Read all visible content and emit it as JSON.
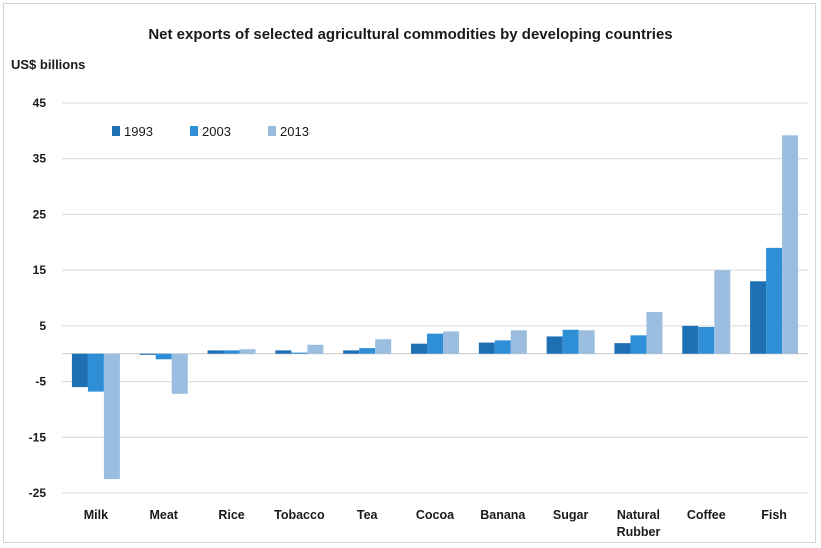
{
  "chart_data": {
    "type": "bar",
    "title": "Net exports of selected agricultural commodities by developing countries",
    "ylabel": "US$ billions",
    "xlabel": "",
    "ylim": [
      -25,
      45
    ],
    "yticks": [
      45,
      35,
      25,
      15,
      5,
      -5,
      -15,
      -25
    ],
    "grid": true,
    "legend_position": "top-left",
    "categories": [
      "Milk",
      "Meat",
      "Rice",
      "Tobacco",
      "Tea",
      "Cocoa",
      "Banana",
      "Sugar",
      "Natural Rubber",
      "Coffee",
      "Fish"
    ],
    "series": [
      {
        "name": "1993",
        "color": "#1f6fb5",
        "values": [
          -6,
          -0.2,
          0.6,
          0.6,
          0.6,
          1.8,
          2.0,
          3.1,
          1.9,
          5.0,
          13.0
        ]
      },
      {
        "name": "2003",
        "color": "#2e8fd6",
        "values": [
          -6.8,
          -1.0,
          0.6,
          0.2,
          1.0,
          3.6,
          2.4,
          4.3,
          3.3,
          4.8,
          19.0
        ]
      },
      {
        "name": "2013",
        "color": "#9bbde0",
        "values": [
          -22.5,
          -7.2,
          0.8,
          1.6,
          2.6,
          4.0,
          4.2,
          4.2,
          7.5,
          15.0,
          39.2
        ]
      }
    ]
  }
}
